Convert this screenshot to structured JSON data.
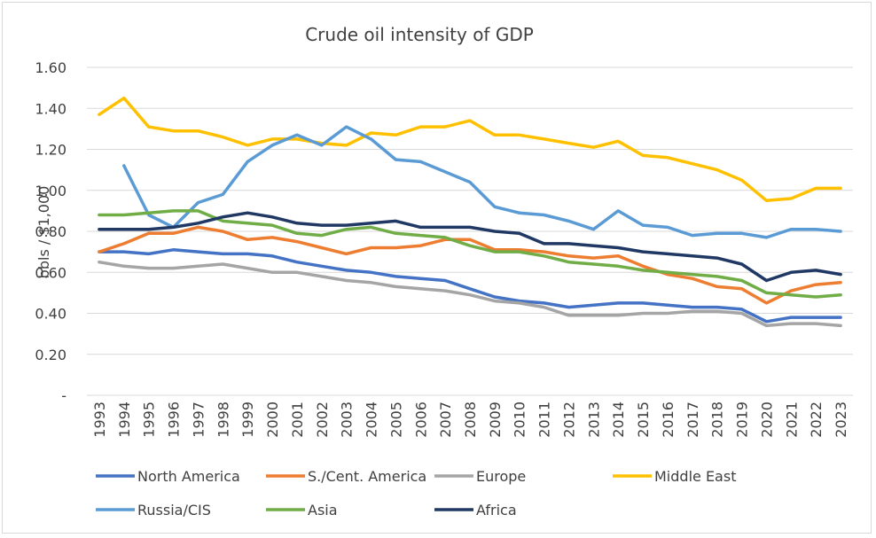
{
  "chart_data": {
    "type": "line",
    "title": "Crude oil intensity of GDP",
    "xlabel": "",
    "ylabel": "bbls / $1,000",
    "ylim": [
      0,
      1.6
    ],
    "yticks": [
      "-",
      "0.20",
      "0.40",
      "0.60",
      "0.80",
      "1.00",
      "1.20",
      "1.40",
      "1.60"
    ],
    "y_tick_values": [
      0,
      0.2,
      0.4,
      0.6,
      0.8,
      1.0,
      1.2,
      1.4,
      1.6
    ],
    "grid": "horizontal",
    "legend_position": "bottom",
    "x": [
      "1993",
      "1994",
      "1995",
      "1996",
      "1997",
      "1998",
      "1999",
      "2000",
      "2001",
      "2002",
      "2003",
      "2004",
      "2005",
      "2006",
      "2007",
      "2008",
      "2009",
      "2010",
      "2011",
      "2012",
      "2013",
      "2014",
      "2015",
      "2016",
      "2017",
      "2018",
      "2019",
      "2020",
      "2021",
      "2022",
      "2023"
    ],
    "series": [
      {
        "name": "North America",
        "color": "#4472c4",
        "values": [
          0.7,
          0.7,
          0.69,
          0.71,
          0.7,
          0.69,
          0.69,
          0.68,
          0.65,
          0.63,
          0.61,
          0.6,
          0.58,
          0.57,
          0.56,
          0.52,
          0.48,
          0.46,
          0.45,
          0.43,
          0.44,
          0.45,
          0.45,
          0.44,
          0.43,
          0.43,
          0.42,
          0.36,
          0.38,
          0.38,
          0.38
        ]
      },
      {
        "name": "S./Cent. America",
        "color": "#ed7d31",
        "values": [
          0.7,
          0.74,
          0.79,
          0.79,
          0.82,
          0.8,
          0.76,
          0.77,
          0.75,
          0.72,
          0.69,
          0.72,
          0.72,
          0.73,
          0.76,
          0.76,
          0.71,
          0.71,
          0.7,
          0.68,
          0.67,
          0.68,
          0.63,
          0.59,
          0.57,
          0.53,
          0.52,
          0.45,
          0.51,
          0.54,
          0.55
        ]
      },
      {
        "name": "Europe",
        "color": "#a5a5a5",
        "values": [
          0.65,
          0.63,
          0.62,
          0.62,
          0.63,
          0.64,
          0.62,
          0.6,
          0.6,
          0.58,
          0.56,
          0.55,
          0.53,
          0.52,
          0.51,
          0.49,
          0.46,
          0.45,
          0.43,
          0.39,
          0.39,
          0.39,
          0.4,
          0.4,
          0.41,
          0.41,
          0.4,
          0.34,
          0.35,
          0.35,
          0.34
        ]
      },
      {
        "name": "Middle East",
        "color": "#ffc000",
        "values": [
          1.37,
          1.45,
          1.31,
          1.29,
          1.29,
          1.26,
          1.22,
          1.25,
          1.25,
          1.23,
          1.22,
          1.28,
          1.27,
          1.31,
          1.31,
          1.34,
          1.27,
          1.27,
          1.25,
          1.23,
          1.21,
          1.24,
          1.17,
          1.16,
          1.13,
          1.1,
          1.05,
          0.95,
          0.96,
          1.01,
          1.01
        ]
      },
      {
        "name": "Russia/CIS",
        "color": "#5b9bd5",
        "values": [
          null,
          1.12,
          0.88,
          0.82,
          0.94,
          0.98,
          1.14,
          1.22,
          1.27,
          1.22,
          1.31,
          1.25,
          1.15,
          1.14,
          1.09,
          1.04,
          0.92,
          0.89,
          0.88,
          0.85,
          0.81,
          0.9,
          0.83,
          0.82,
          0.78,
          0.79,
          0.79,
          0.77,
          0.81,
          0.81,
          0.8
        ]
      },
      {
        "name": "Asia",
        "color": "#70ad47",
        "values": [
          0.88,
          0.88,
          0.89,
          0.9,
          0.9,
          0.85,
          0.84,
          0.83,
          0.79,
          0.78,
          0.81,
          0.82,
          0.79,
          0.78,
          0.77,
          0.73,
          0.7,
          0.7,
          0.68,
          0.65,
          0.64,
          0.63,
          0.61,
          0.6,
          0.59,
          0.58,
          0.56,
          0.5,
          0.49,
          0.48,
          0.49
        ]
      },
      {
        "name": "Africa",
        "color": "#203864",
        "values": [
          0.81,
          0.81,
          0.81,
          0.82,
          0.84,
          0.87,
          0.89,
          0.87,
          0.84,
          0.83,
          0.83,
          0.84,
          0.85,
          0.82,
          0.82,
          0.82,
          0.8,
          0.79,
          0.74,
          0.74,
          0.73,
          0.72,
          0.7,
          0.69,
          0.68,
          0.67,
          0.64,
          0.56,
          0.6,
          0.61,
          0.59
        ]
      }
    ]
  }
}
